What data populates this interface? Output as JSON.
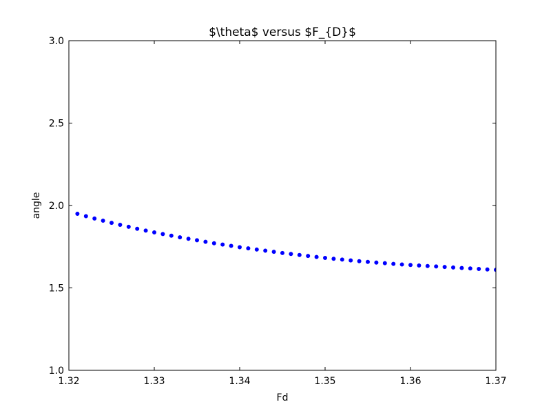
{
  "chart_data": {
    "type": "scatter",
    "title": "$\\theta$ versus $F_{D}$",
    "xlabel": "Fd",
    "ylabel": "angle",
    "xlim": [
      1.32,
      1.37
    ],
    "ylim": [
      1.0,
      3.0
    ],
    "xticks": [
      "1.32",
      "1.33",
      "1.34",
      "1.35",
      "1.36",
      "1.37"
    ],
    "yticks": [
      "1.0",
      "1.5",
      "2.0",
      "2.5",
      "3.0"
    ],
    "grid": false,
    "marker_color": "#0000ff",
    "series": [
      {
        "x": [
          1.321,
          1.322,
          1.323,
          1.324,
          1.325,
          1.326,
          1.327,
          1.328,
          1.329,
          1.33,
          1.331,
          1.332,
          1.333,
          1.334,
          1.335,
          1.336,
          1.337,
          1.338,
          1.339,
          1.34,
          1.341,
          1.342,
          1.343,
          1.344,
          1.345,
          1.346,
          1.347,
          1.348,
          1.349,
          1.35,
          1.351,
          1.352,
          1.353,
          1.354,
          1.355,
          1.356,
          1.357,
          1.358,
          1.359,
          1.36,
          1.361,
          1.362,
          1.363,
          1.364,
          1.365,
          1.366,
          1.367,
          1.368,
          1.369,
          1.37
        ],
        "y": [
          1.95,
          1.935,
          1.921,
          1.908,
          1.895,
          1.883,
          1.871,
          1.859,
          1.848,
          1.837,
          1.827,
          1.817,
          1.807,
          1.798,
          1.789,
          1.78,
          1.771,
          1.763,
          1.755,
          1.747,
          1.74,
          1.733,
          1.726,
          1.719,
          1.712,
          1.706,
          1.7,
          1.694,
          1.688,
          1.682,
          1.677,
          1.672,
          1.667,
          1.662,
          1.658,
          1.654,
          1.65,
          1.646,
          1.642,
          1.639,
          1.636,
          1.633,
          1.63,
          1.627,
          1.624,
          1.621,
          1.618,
          1.615,
          1.612,
          1.61
        ]
      }
    ]
  }
}
